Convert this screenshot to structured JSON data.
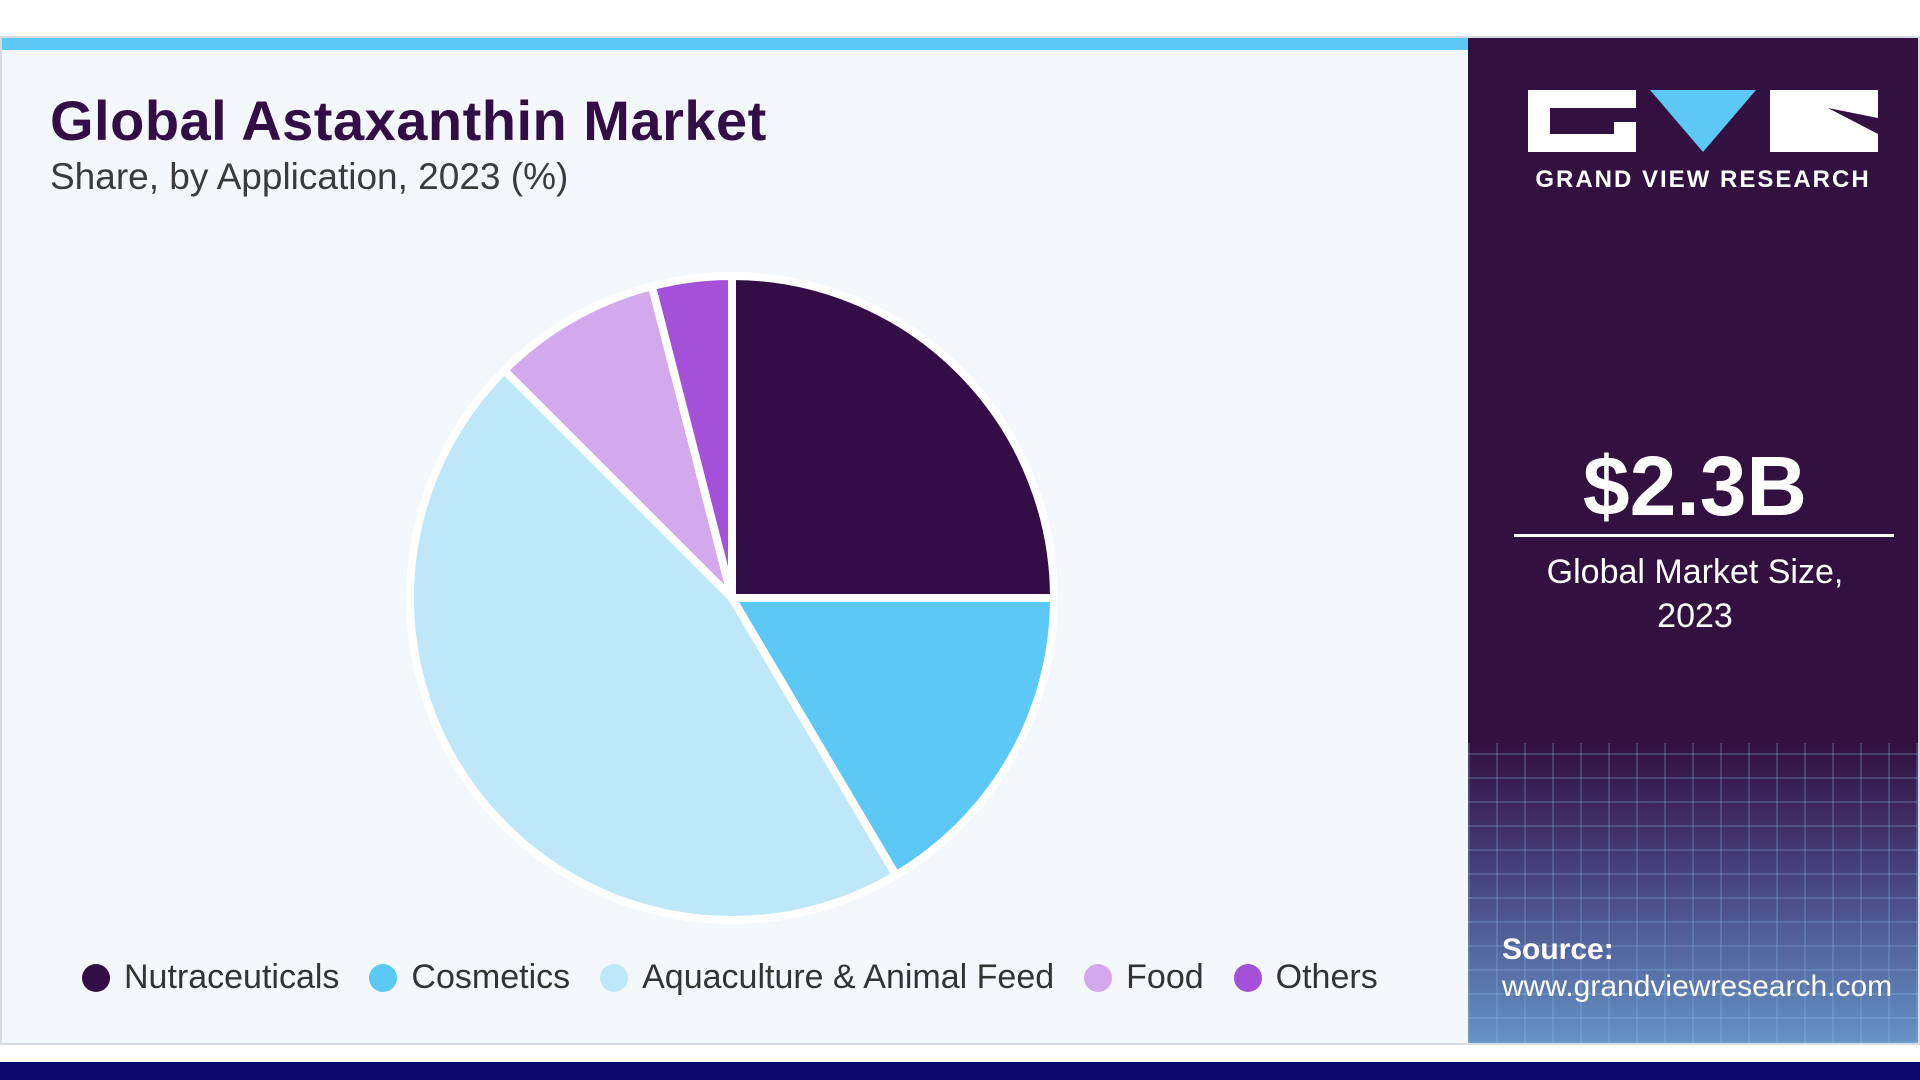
{
  "header": {
    "title": "Global Astaxanthin Market",
    "subtitle": "Share, by Application, 2023 (%)"
  },
  "chart_data": {
    "type": "pie",
    "title": "Global Astaxanthin Market",
    "subtitle": "Share, by Application, 2023 (%)",
    "categories": [
      "Nutraceuticals",
      "Cosmetics",
      "Aquaculture & Animal Feed",
      "Food",
      "Others"
    ],
    "values": [
      25,
      16.5,
      46,
      8.5,
      4
    ],
    "colors": [
      "#330e46",
      "#5bc8f5",
      "#bee8f9",
      "#d4a8ec",
      "#a550d8"
    ],
    "legend_position": "bottom"
  },
  "summary": {
    "market_value": "$2.3B",
    "market_label": "Global Market Size, 2023"
  },
  "brand": {
    "name": "GRAND VIEW RESEARCH",
    "logo_icon": "gvr-logo-icon"
  },
  "source": {
    "label": "Source:",
    "url": "www.grandviewresearch.com"
  }
}
